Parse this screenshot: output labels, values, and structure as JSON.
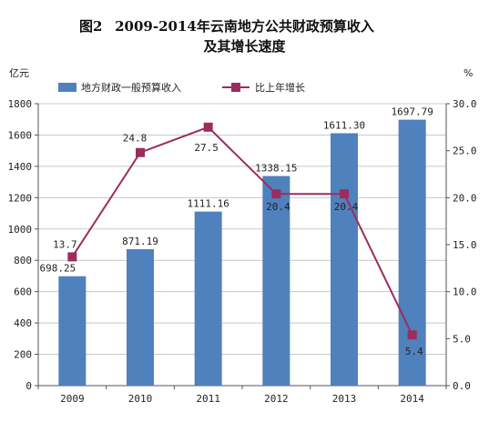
{
  "figure": {
    "label": "图2",
    "title_line1": "2009-2014年云南地方公共财政预算收入",
    "title_line2": "及其增长速度"
  },
  "chart_data": {
    "type": "bar+line",
    "categories": [
      "2009",
      "2010",
      "2011",
      "2012",
      "2013",
      "2014"
    ],
    "series": [
      {
        "name": "地方财政一般预算收入",
        "type": "bar",
        "axis": "left",
        "color": "#4F81BD",
        "values": [
          698.25,
          871.19,
          1111.16,
          1338.15,
          1611.3,
          1697.79
        ],
        "labels": [
          "698.25",
          "871.19",
          "1111.16",
          "1338.15",
          "1611.30",
          "1697.79"
        ]
      },
      {
        "name": "比上年增长",
        "type": "line",
        "axis": "right",
        "color": "#9B2D5E",
        "values": [
          13.7,
          24.8,
          27.5,
          20.4,
          20.4,
          5.4
        ],
        "labels": [
          "13.7",
          "24.8",
          "27.5",
          "20.4",
          "20.4",
          "5.4"
        ]
      }
    ],
    "y_left": {
      "unit": "亿元",
      "range": [
        0,
        1800
      ],
      "ticks": [
        "0",
        "200",
        "400",
        "600",
        "800",
        "1000",
        "1200",
        "1400",
        "1600",
        "1800"
      ]
    },
    "y_right": {
      "unit": "%",
      "range": [
        0,
        30
      ],
      "ticks": [
        "0.0",
        "5.0",
        "10.0",
        "15.0",
        "20.0",
        "25.0",
        "30.0"
      ]
    },
    "grid": true,
    "legend_position": "top-center"
  }
}
